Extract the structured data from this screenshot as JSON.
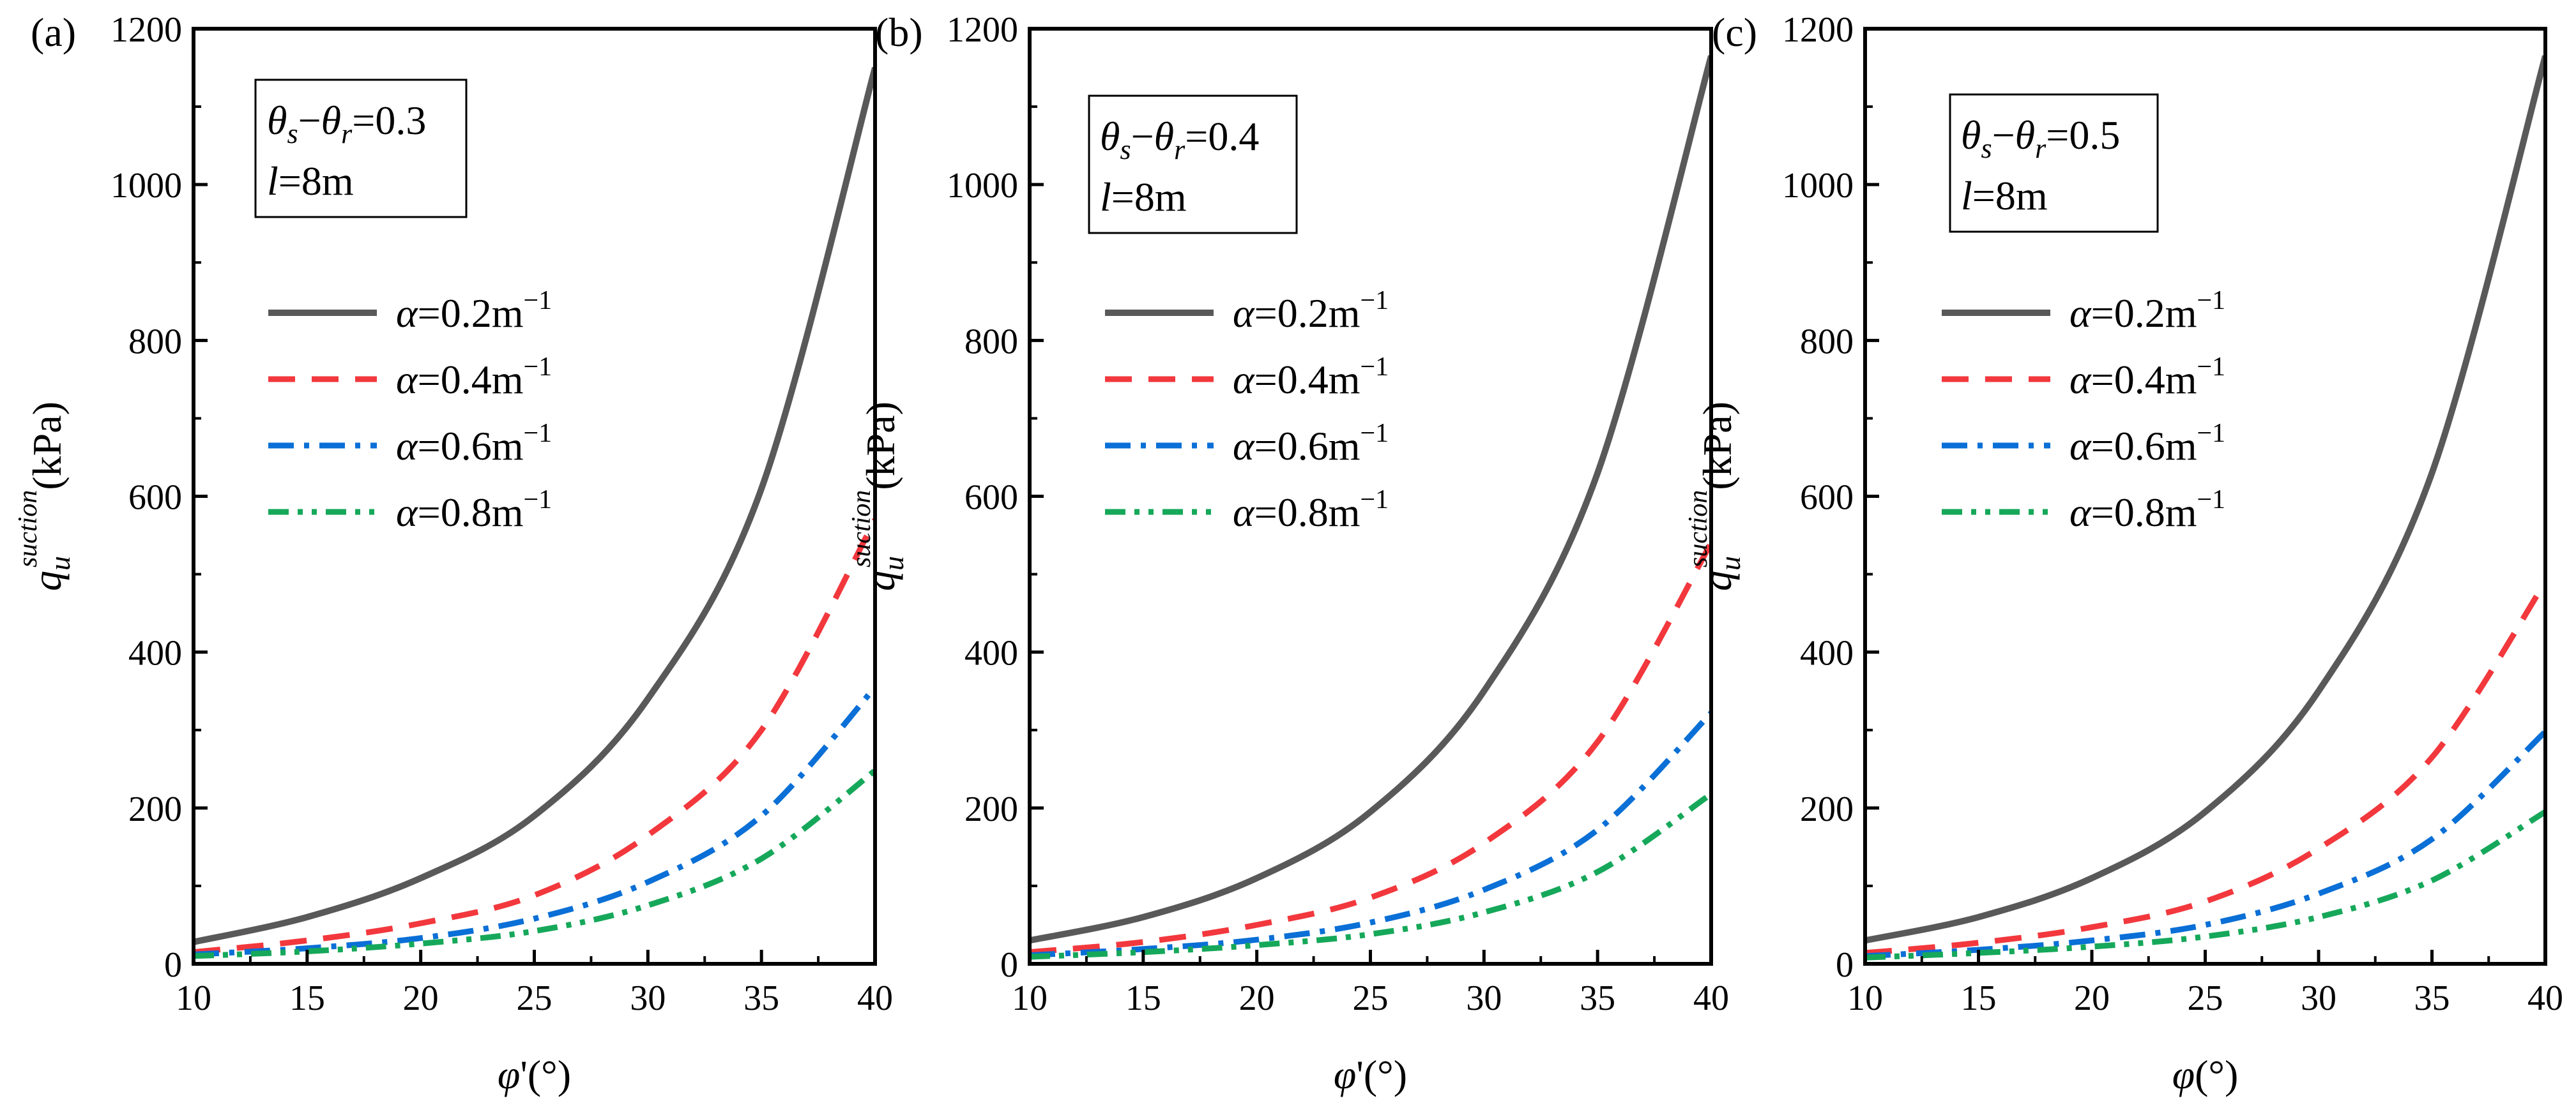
{
  "colors": {
    "alpha_0_2": "#595959",
    "alpha_0_4": "#f2383d",
    "alpha_0_6": "#0a6fd6",
    "alpha_0_8": "#16a85a"
  },
  "chart_data": [
    {
      "type": "line",
      "panel_label": "(a)",
      "annotation": {
        "line1": "θs−θr=0.3",
        "line2": "l=8m"
      },
      "xlabel": "φ'(°)",
      "ylabel": "qu suction (kPa)",
      "xlim": [
        10,
        40
      ],
      "ylim": [
        0,
        1200
      ],
      "xticks": [
        10,
        15,
        20,
        25,
        30,
        35,
        40
      ],
      "yticks": [
        0,
        200,
        400,
        600,
        800,
        1000,
        1200
      ],
      "x": [
        10,
        15,
        20,
        25,
        30,
        35,
        40
      ],
      "series": [
        {
          "name": "α=0.2m⁻¹",
          "values": [
            28,
            60,
            110,
            190,
            340,
            610,
            1150
          ]
        },
        {
          "name": "α=0.4m⁻¹",
          "values": [
            15,
            30,
            52,
            88,
            165,
            300,
            570
          ]
        },
        {
          "name": "α=0.6m⁻¹",
          "values": [
            12,
            20,
            33,
            58,
            105,
            190,
            355
          ]
        },
        {
          "name": "α=0.8m⁻¹",
          "values": [
            10,
            16,
            26,
            42,
            75,
            135,
            248
          ]
        }
      ]
    },
    {
      "type": "line",
      "panel_label": "(b)",
      "annotation": {
        "line1": "θs−θr=0.4",
        "line2": "l=8m"
      },
      "xlabel": "φ'(°)",
      "ylabel": "qu suction (kPa)",
      "xlim": [
        10,
        40
      ],
      "ylim": [
        0,
        1200
      ],
      "xticks": [
        10,
        15,
        20,
        25,
        30,
        35,
        40
      ],
      "yticks": [
        0,
        200,
        400,
        600,
        800,
        1000,
        1200
      ],
      "x": [
        10,
        15,
        20,
        25,
        30,
        35,
        40
      ],
      "series": [
        {
          "name": "α=0.2m⁻¹",
          "values": [
            30,
            60,
            110,
            195,
            350,
            630,
            1165
          ]
        },
        {
          "name": "α=0.4m⁻¹",
          "values": [
            15,
            28,
            50,
            85,
            155,
            285,
            540
          ]
        },
        {
          "name": "α=0.6m⁻¹",
          "values": [
            11,
            19,
            31,
            53,
            95,
            172,
            322
          ]
        },
        {
          "name": "α=0.8m⁻¹",
          "values": [
            9,
            15,
            24,
            38,
            66,
            118,
            218
          ]
        }
      ]
    },
    {
      "type": "line",
      "panel_label": "(c)",
      "annotation": {
        "line1": "θs−θr=0.5",
        "line2": "l=8m"
      },
      "xlabel": "φ(°)",
      "ylabel": "qu suction (kPa)",
      "xlim": [
        10,
        40
      ],
      "ylim": [
        0,
        1200
      ],
      "xticks": [
        10,
        15,
        20,
        25,
        30,
        35,
        40
      ],
      "yticks": [
        0,
        200,
        400,
        600,
        800,
        1000,
        1200
      ],
      "x": [
        10,
        15,
        20,
        25,
        30,
        35,
        40
      ],
      "series": [
        {
          "name": "α=0.2m⁻¹",
          "values": [
            30,
            60,
            110,
            195,
            350,
            630,
            1165
          ]
        },
        {
          "name": "α=0.4m⁻¹",
          "values": [
            14,
            27,
            47,
            80,
            148,
            265,
            490
          ]
        },
        {
          "name": "α=0.6m⁻¹",
          "values": [
            10,
            18,
            30,
            50,
            90,
            160,
            298
          ]
        },
        {
          "name": "α=0.8m⁻¹",
          "values": [
            8,
            14,
            22,
            35,
            60,
            107,
            195
          ]
        }
      ]
    }
  ]
}
